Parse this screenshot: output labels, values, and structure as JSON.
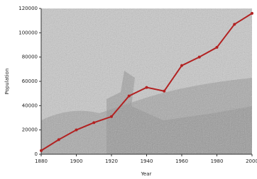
{
  "chart_data": {
    "type": "line",
    "y_label": "Population",
    "x_label": "Year",
    "x": [
      1880,
      1890,
      1900,
      1910,
      1920,
      1930,
      1940,
      1950,
      1960,
      1970,
      1980,
      1990,
      2000
    ],
    "series": [
      {
        "name": "Population",
        "color": "#b22222",
        "values": [
          3000,
          12000,
          20000,
          26000,
          31000,
          48000,
          55000,
          52000,
          73000,
          80000,
          88000,
          107000,
          116000
        ]
      }
    ],
    "xlim": [
      1880,
      2000
    ],
    "xticks": [
      1880,
      1900,
      1920,
      1940,
      1960,
      1980,
      2000
    ],
    "ylim": [
      0,
      120000
    ],
    "yticks": [
      0,
      20000,
      40000,
      60000,
      80000,
      100000,
      120000
    ]
  }
}
